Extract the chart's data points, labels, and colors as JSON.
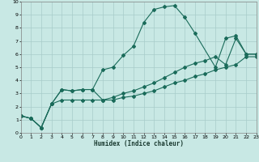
{
  "xlabel": "Humidex (Indice chaleur)",
  "bg_color": "#c8e8e4",
  "grid_color": "#a8ccca",
  "line_color": "#1a6b5a",
  "xlim": [
    0,
    23
  ],
  "ylim": [
    0,
    10
  ],
  "xticks": [
    0,
    1,
    2,
    3,
    4,
    5,
    6,
    7,
    8,
    9,
    10,
    11,
    12,
    13,
    14,
    15,
    16,
    17,
    18,
    19,
    20,
    21,
    22,
    23
  ],
  "yticks": [
    0,
    1,
    2,
    3,
    4,
    5,
    6,
    7,
    8,
    9,
    10
  ],
  "line_peak_x": [
    0,
    1,
    2,
    3,
    4,
    5,
    6,
    7,
    8,
    9,
    10,
    11,
    12,
    13,
    14,
    15,
    16,
    17,
    19,
    20,
    21,
    22,
    23
  ],
  "line_peak_y": [
    1.3,
    1.1,
    0.4,
    2.2,
    3.3,
    3.2,
    3.3,
    3.3,
    4.8,
    5.0,
    5.9,
    6.6,
    8.4,
    9.4,
    9.6,
    9.7,
    8.8,
    7.6,
    5.0,
    7.2,
    7.4,
    6.0,
    6.0
  ],
  "line_upper_x": [
    0,
    1,
    2,
    3,
    4,
    5,
    6,
    7,
    8,
    9,
    10,
    11,
    12,
    13,
    14,
    15,
    16,
    17,
    18,
    19,
    20,
    21,
    22,
    23
  ],
  "line_upper_y": [
    1.3,
    1.1,
    0.4,
    2.2,
    3.3,
    3.2,
    3.3,
    3.3,
    2.5,
    2.7,
    3.0,
    3.2,
    3.5,
    3.8,
    4.2,
    4.6,
    5.0,
    5.3,
    5.5,
    5.8,
    5.2,
    7.2,
    6.0,
    6.0
  ],
  "line_lower_x": [
    0,
    1,
    2,
    3,
    4,
    5,
    6,
    7,
    8,
    9,
    10,
    11,
    12,
    13,
    14,
    15,
    16,
    17,
    18,
    19,
    20,
    21,
    22,
    23
  ],
  "line_lower_y": [
    1.3,
    1.1,
    0.4,
    2.2,
    2.5,
    2.5,
    2.5,
    2.5,
    2.5,
    2.5,
    2.7,
    2.8,
    3.0,
    3.2,
    3.5,
    3.8,
    4.0,
    4.3,
    4.5,
    4.8,
    5.0,
    5.2,
    5.8,
    5.8
  ]
}
